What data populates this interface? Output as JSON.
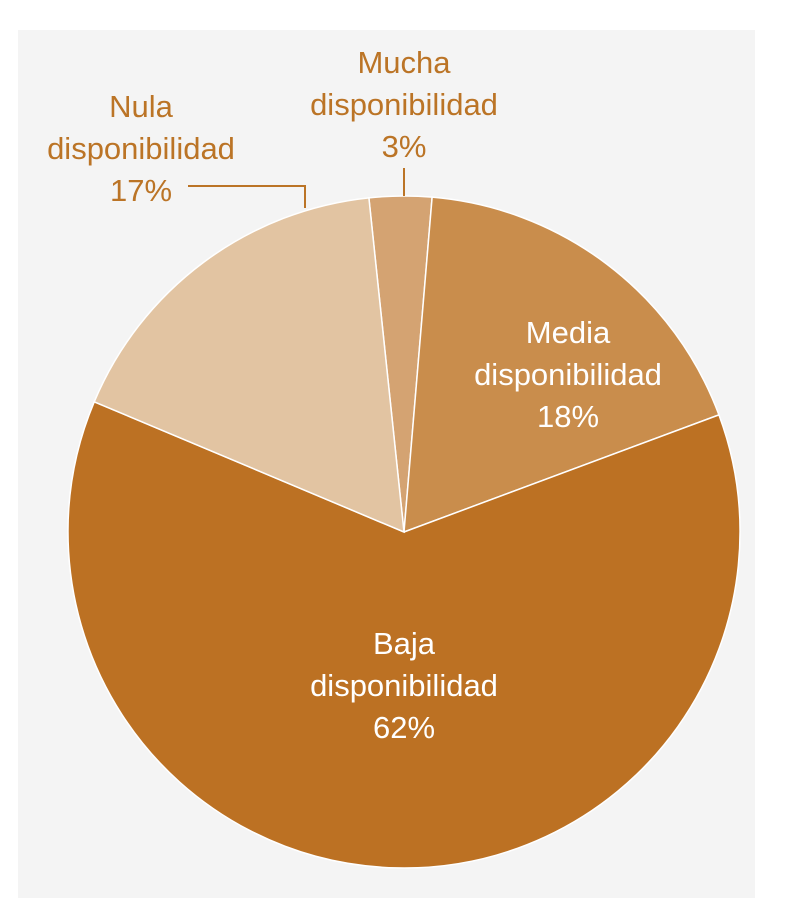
{
  "chart_data": {
    "type": "pie",
    "title": "",
    "slices": [
      {
        "label_lines": [
          "Mucha",
          "disponibilidad"
        ],
        "value": 3,
        "value_text": "3%",
        "color": "#d4a372",
        "label_color": "#bb7426",
        "label_position": "outside"
      },
      {
        "label_lines": [
          "Media",
          "disponibilidad"
        ],
        "value": 18,
        "value_text": "18%",
        "color": "#c98d4c",
        "label_color": "#ffffff",
        "label_position": "inside"
      },
      {
        "label_lines": [
          "Baja",
          "disponibilidad"
        ],
        "value": 62,
        "value_text": "62%",
        "color": "#bc7123",
        "label_color": "#ffffff",
        "label_position": "inside"
      },
      {
        "label_lines": [
          "Nula",
          "disponibilidad"
        ],
        "value": 17,
        "value_text": "17%",
        "color": "#e2c4a2",
        "label_color": "#bb7426",
        "label_position": "outside"
      }
    ],
    "start_angle_deg": -6,
    "direction": "clockwise",
    "background_color": "#f4f4f4",
    "leader_line_color": "#bb7426"
  }
}
